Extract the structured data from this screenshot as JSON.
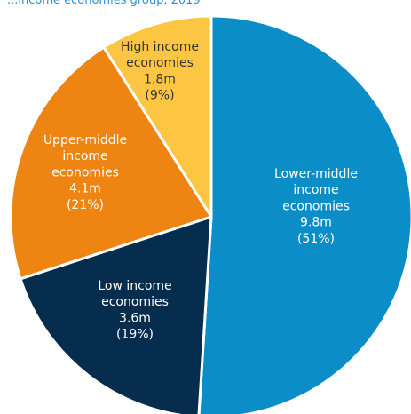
{
  "chart_data": {
    "type": "pie",
    "title": "...income economies group, 2019",
    "units": "m",
    "start_angle_deg": 0,
    "direction": "clockwise",
    "slices": [
      {
        "name": "Lower-middle income economies",
        "lines": [
          "Lower-middle",
          "income",
          "economies"
        ],
        "value": 9.8,
        "value_label": "9.8m",
        "percent_label": "(51%)",
        "percent": 51,
        "color": "#0b8dc8",
        "text_color": "#ffffff"
      },
      {
        "name": "Low income economies",
        "lines": [
          "Low income",
          "economies"
        ],
        "value": 3.6,
        "value_label": "3.6m",
        "percent_label": "(19%)",
        "percent": 19,
        "color": "#062c4e",
        "text_color": "#ffffff"
      },
      {
        "name": "Upper-middle income economies",
        "lines": [
          "Upper-middle",
          "income",
          "economies"
        ],
        "value": 4.1,
        "value_label": "4.1m",
        "percent_label": "(21%)",
        "percent": 21,
        "color": "#ee8412",
        "text_color": "#ffffff"
      },
      {
        "name": "High income economies",
        "lines": [
          "High income",
          "economies"
        ],
        "value": 1.8,
        "value_label": "1.8m",
        "percent_label": "(9%)",
        "percent": 9,
        "color": "#fcc643",
        "text_color": "#333333"
      }
    ]
  }
}
